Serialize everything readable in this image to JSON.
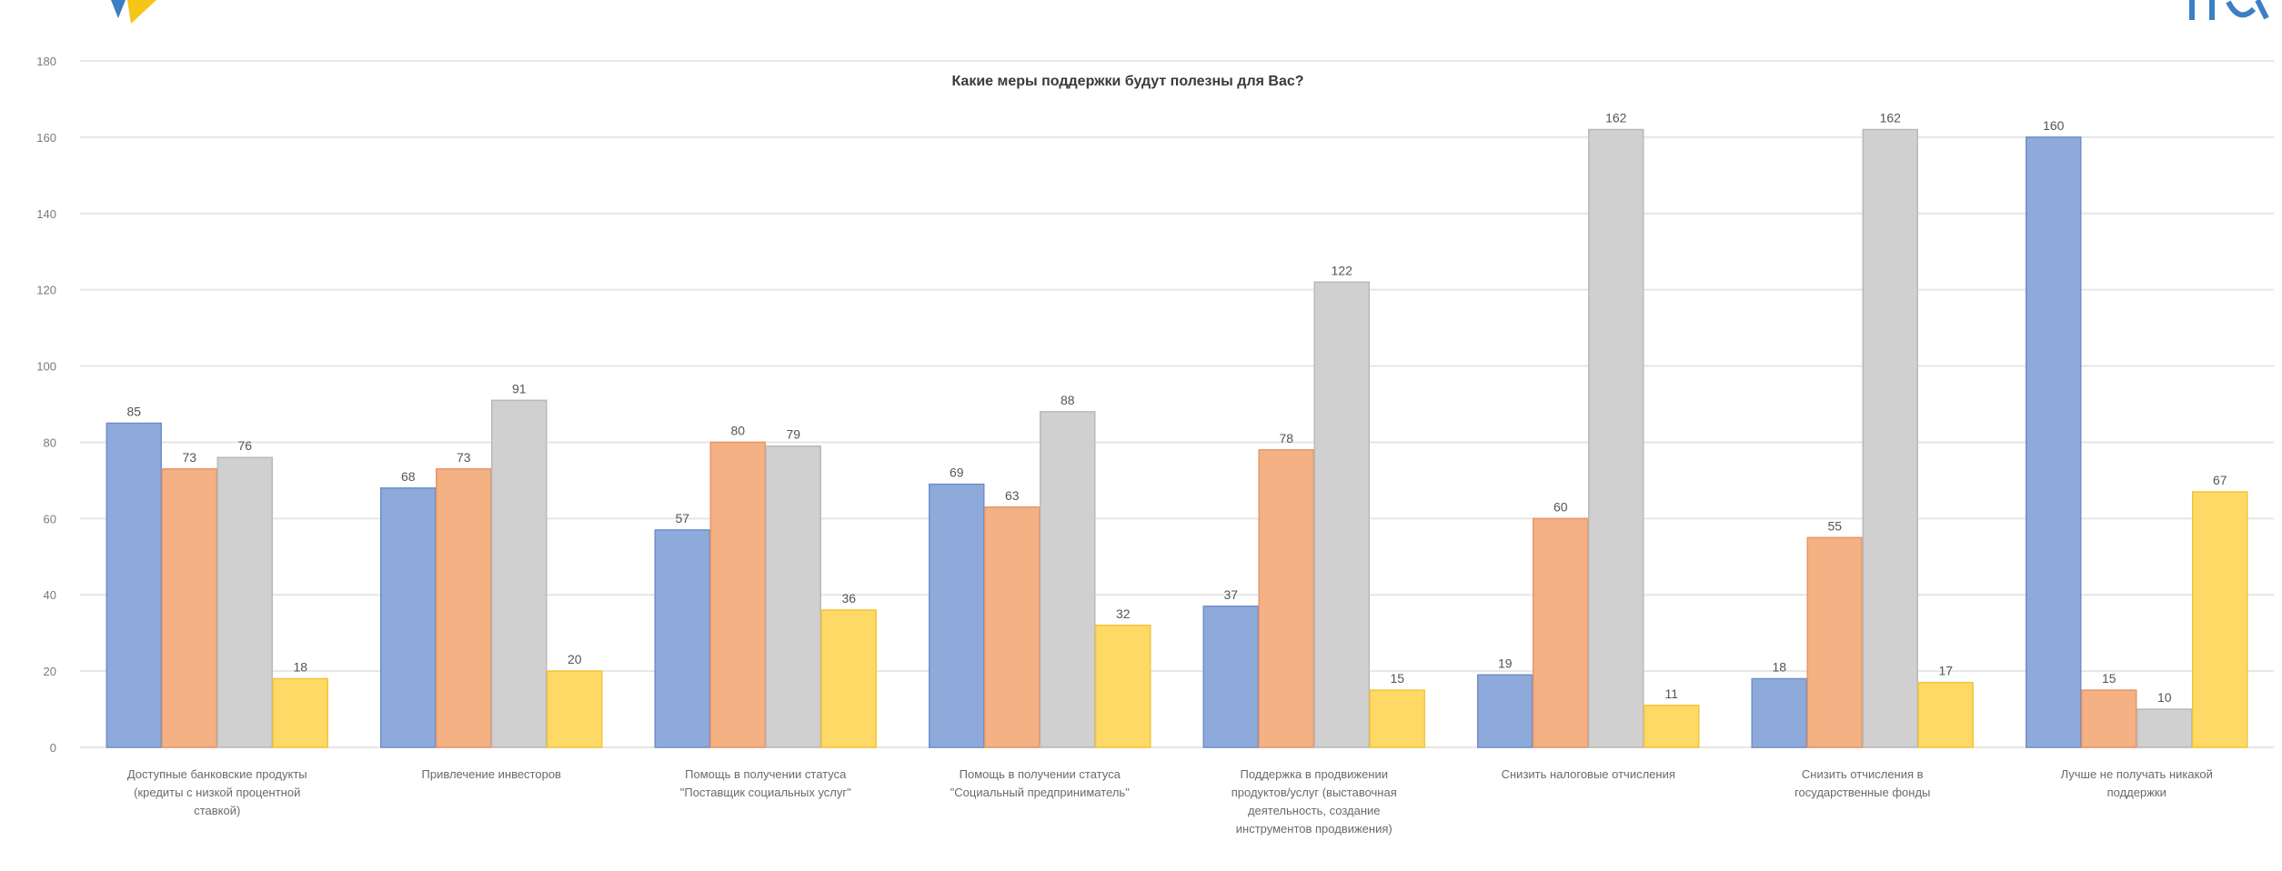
{
  "colors": {
    "series": [
      "#8eaadb",
      "#f4b183",
      "#d0d0d0",
      "#ffd966"
    ],
    "series_edge": [
      "#6f8fc9",
      "#e7956a",
      "#b9b9b9",
      "#f2c53a"
    ],
    "grid": "#e6e6e6",
    "logo_yellow": "#f5c518",
    "logo_blue": "#3b7fc4"
  },
  "chart_data": {
    "type": "bar",
    "title": "Какие меры поддержки будут полезны для Вас?",
    "xlabel": "",
    "ylabel": "",
    "ylim": [
      0,
      180
    ],
    "yticks": [
      0,
      20,
      40,
      60,
      80,
      100,
      120,
      140,
      160,
      180
    ],
    "grid": true,
    "legend": "none",
    "categories": [
      [
        "Доступные банковские продукты",
        "(кредиты с низкой процентной",
        "ставкой)"
      ],
      [
        "Привлечение инвесторов"
      ],
      [
        "Помощь в получении статуса",
        "\"Поставщик социальных услуг\""
      ],
      [
        "Помощь в получении статуса",
        "\"Социальный предприниматель\""
      ],
      [
        "Поддержка в продвижении",
        "продуктов/услуг (выставочная",
        "деятельность, создание",
        "инструментов продвижения)"
      ],
      [
        "Снизить налоговые отчисления"
      ],
      [
        "Снизить отчисления в",
        "государственные фонды"
      ],
      [
        "Лучше не получать никакой",
        "поддержки"
      ]
    ],
    "series": [
      {
        "values": [
          85,
          68,
          57,
          69,
          37,
          19,
          18,
          160
        ]
      },
      {
        "values": [
          73,
          73,
          80,
          63,
          78,
          60,
          55,
          15
        ]
      },
      {
        "values": [
          76,
          91,
          79,
          88,
          122,
          162,
          162,
          10
        ]
      },
      {
        "values": [
          18,
          20,
          36,
          32,
          15,
          11,
          17,
          67
        ]
      }
    ]
  }
}
